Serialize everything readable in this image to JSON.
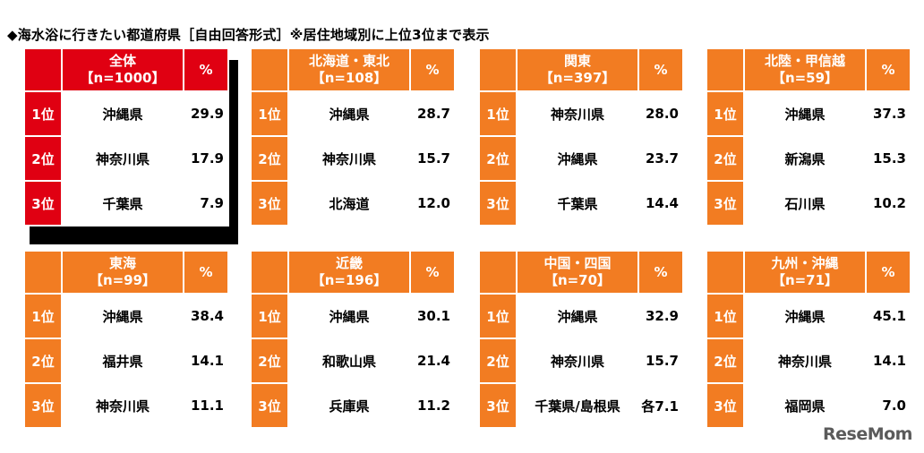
{
  "title": "◆海水浴に行きたい都道府県［自由回答形式］※居住地域別に上位3位まで表示",
  "colors": {
    "highlight": "#e00012",
    "accent": "#f27c22",
    "cell_bg": "#ffffff",
    "shadow": "#000000"
  },
  "logo": "ReseMom",
  "chart_data": [
    {
      "type": "table",
      "title": "全体",
      "n_label": "【n=1000】",
      "unit": "%",
      "highlight": true,
      "rows": [
        {
          "rank": "1位",
          "pref": "沖縄県",
          "value": "29.9"
        },
        {
          "rank": "2位",
          "pref": "神奈川県",
          "value": "17.9"
        },
        {
          "rank": "3位",
          "pref": "千葉県",
          "value": "7.9"
        }
      ]
    },
    {
      "type": "table",
      "title": "北海道・東北",
      "n_label": "【n=108】",
      "unit": "%",
      "rows": [
        {
          "rank": "1位",
          "pref": "沖縄県",
          "value": "28.7"
        },
        {
          "rank": "2位",
          "pref": "神奈川県",
          "value": "15.7"
        },
        {
          "rank": "3位",
          "pref": "北海道",
          "value": "12.0"
        }
      ]
    },
    {
      "type": "table",
      "title": "関東",
      "n_label": "【n=397】",
      "unit": "%",
      "rows": [
        {
          "rank": "1位",
          "pref": "神奈川県",
          "value": "28.0"
        },
        {
          "rank": "2位",
          "pref": "沖縄県",
          "value": "23.7"
        },
        {
          "rank": "3位",
          "pref": "千葉県",
          "value": "14.4"
        }
      ]
    },
    {
      "type": "table",
      "title": "北陸・甲信越",
      "n_label": "【n=59】",
      "unit": "%",
      "rows": [
        {
          "rank": "1位",
          "pref": "沖縄県",
          "value": "37.3"
        },
        {
          "rank": "2位",
          "pref": "新潟県",
          "value": "15.3"
        },
        {
          "rank": "3位",
          "pref": "石川県",
          "value": "10.2"
        }
      ]
    },
    {
      "type": "table",
      "title": "東海",
      "n_label": "【n=99】",
      "unit": "%",
      "rows": [
        {
          "rank": "1位",
          "pref": "沖縄県",
          "value": "38.4"
        },
        {
          "rank": "2位",
          "pref": "福井県",
          "value": "14.1"
        },
        {
          "rank": "3位",
          "pref": "神奈川県",
          "value": "11.1"
        }
      ]
    },
    {
      "type": "table",
      "title": "近畿",
      "n_label": "【n=196】",
      "unit": "%",
      "rows": [
        {
          "rank": "1位",
          "pref": "沖縄県",
          "value": "30.1"
        },
        {
          "rank": "2位",
          "pref": "和歌山県",
          "value": "21.4"
        },
        {
          "rank": "3位",
          "pref": "兵庫県",
          "value": "11.2"
        }
      ]
    },
    {
      "type": "table",
      "title": "中国・四国",
      "n_label": "【n=70】",
      "unit": "%",
      "rows": [
        {
          "rank": "1位",
          "pref": "沖縄県",
          "value": "32.9"
        },
        {
          "rank": "2位",
          "pref": "神奈川県",
          "value": "15.7"
        },
        {
          "rank": "3位",
          "pref": "千葉県/島根県",
          "value": "各7.1"
        }
      ]
    },
    {
      "type": "table",
      "title": "九州・沖縄",
      "n_label": "【n=71】",
      "unit": "%",
      "rows": [
        {
          "rank": "1位",
          "pref": "沖縄県",
          "value": "45.1"
        },
        {
          "rank": "2位",
          "pref": "神奈川県",
          "value": "14.1"
        },
        {
          "rank": "3位",
          "pref": "福岡県",
          "value": "7.0"
        }
      ]
    }
  ]
}
